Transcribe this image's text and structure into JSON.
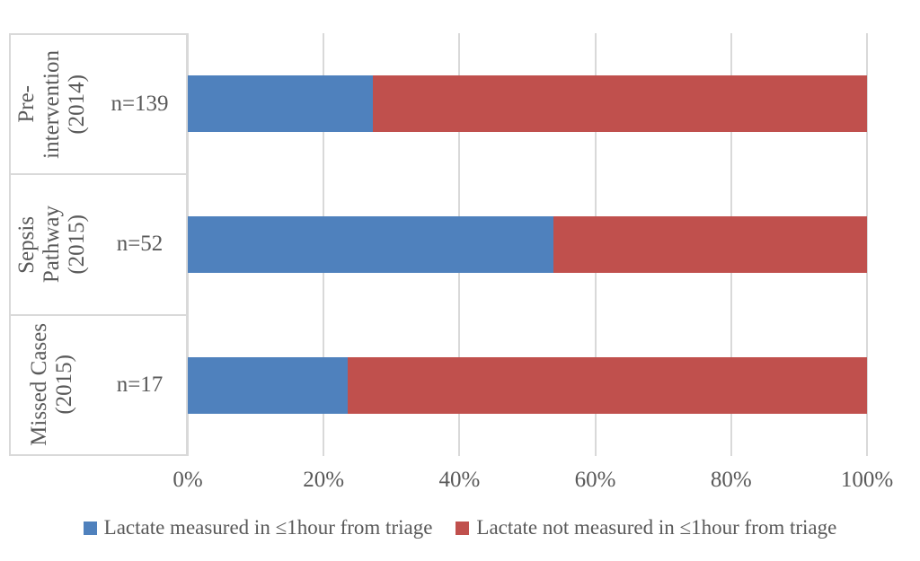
{
  "chart_data": {
    "type": "bar",
    "orientation": "horizontal",
    "stacked": true,
    "title": "",
    "xlabel": "",
    "ylabel": "",
    "x_axis": {
      "min": 0,
      "max": 100,
      "ticks": [
        "0%",
        "20%",
        "40%",
        "60%",
        "80%",
        "100%"
      ]
    },
    "grid": "vertical light gray lines",
    "legend_position": "bottom",
    "categories": [
      {
        "label": "Pre-intervention (2014)",
        "lines": [
          "Pre-",
          "intervention",
          "(2014)"
        ],
        "n": "n=139"
      },
      {
        "label": "Sepsis Pathway (2015)",
        "lines": [
          "Sepsis",
          "Pathway",
          "(2015)"
        ],
        "n": "n=52"
      },
      {
        "label": "Missed Cases (2015)",
        "lines": [
          "Missed Cases",
          "(2015)"
        ],
        "n": "n=17"
      }
    ],
    "series": [
      {
        "name": "Lactate measured in ≤1hour from triage",
        "color": "#4F81BD",
        "values": [
          27.3,
          53.8,
          23.5
        ]
      },
      {
        "name": "Lactate not measured in ≤1hour from triage",
        "color": "#C0504D",
        "values": [
          72.7,
          46.2,
          76.5
        ]
      }
    ]
  },
  "colors": {
    "measured_blue": "#4F81BD",
    "not_measured_red": "#C0504D",
    "gridline_gray": "#D9D9D9",
    "text_gray": "#595959",
    "background": "#FFFFFF"
  }
}
